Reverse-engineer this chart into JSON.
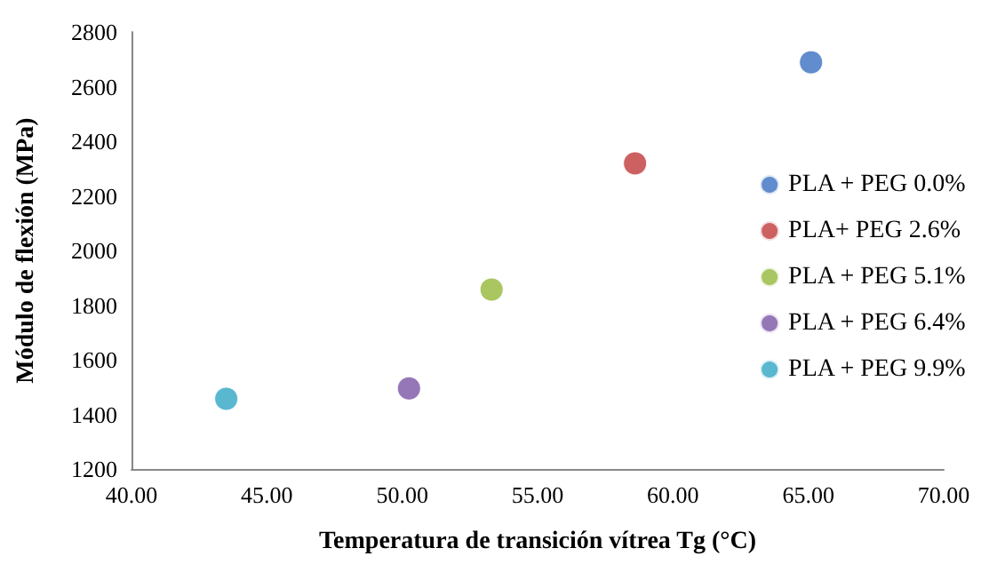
{
  "chart_data": {
    "type": "scatter",
    "xlabel": "Temperatura de transición vítrea Tg (°C)",
    "ylabel": "Módulo de flexión (MPa)",
    "xlim": [
      40,
      70
    ],
    "xticks": [
      {
        "value": 40,
        "label": "40.00"
      },
      {
        "value": 45,
        "label": "45.00"
      },
      {
        "value": 50,
        "label": "50.00"
      },
      {
        "value": 55,
        "label": "55.00"
      },
      {
        "value": 60,
        "label": "60.00"
      },
      {
        "value": 65,
        "label": "65.00"
      },
      {
        "value": 70,
        "label": "70.00"
      }
    ],
    "ylim": [
      1200,
      2800
    ],
    "yticks": [
      1200,
      1400,
      1600,
      1800,
      2000,
      2200,
      2400,
      2600,
      2800
    ],
    "grid": false,
    "legend": "right",
    "marker": "circle",
    "series": [
      {
        "name": "PLA + PEG 0.0%",
        "color": "#3a6fc0",
        "x": [
          65.1
        ],
        "values": [
          2689
        ]
      },
      {
        "name": "PLA+ PEG 2.6%",
        "color": "#c0393b",
        "x": [
          58.6
        ],
        "values": [
          2319
        ]
      },
      {
        "name": "PLA + PEG 5.1%",
        "color": "#94b83a",
        "x": [
          53.3
        ],
        "values": [
          1857
        ]
      },
      {
        "name": "PLA + PEG 6.4%",
        "color": "#7a55a6",
        "x": [
          50.25
        ],
        "values": [
          1495
        ]
      },
      {
        "name": "PLA + PEG 9.9%",
        "color": "#2fa6c4",
        "x": [
          43.5
        ],
        "values": [
          1457
        ]
      }
    ]
  }
}
